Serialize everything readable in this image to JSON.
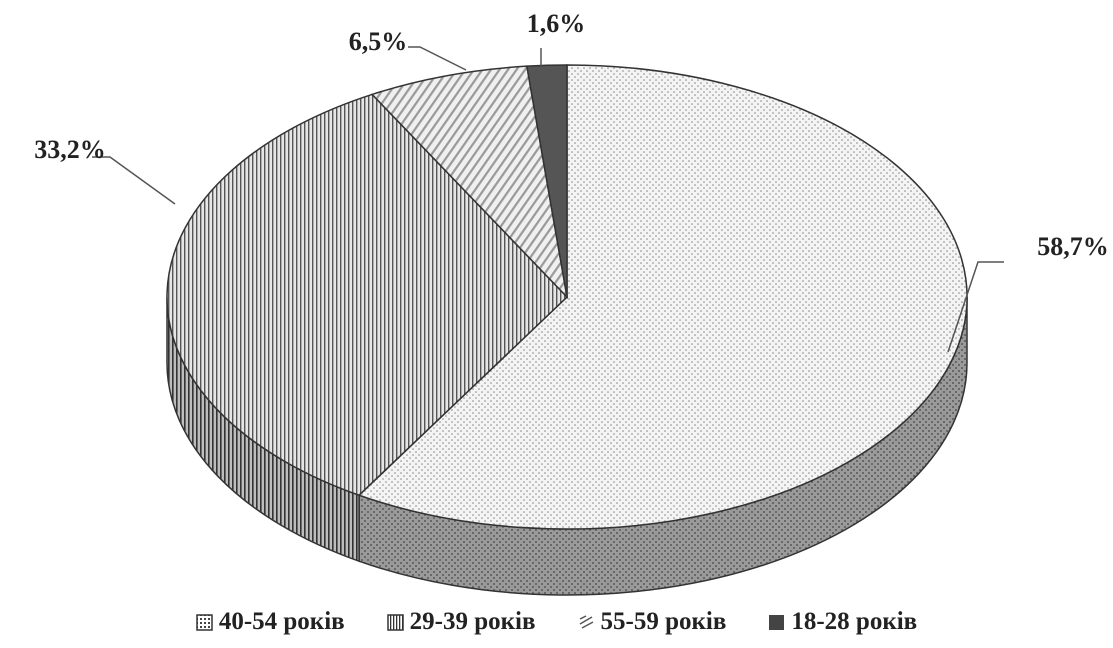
{
  "chart_data": {
    "type": "pie",
    "style": "3d",
    "title": "",
    "slices": [
      {
        "label": "40-54 років",
        "value": 58.7,
        "display": "58,7%",
        "pattern": "dots"
      },
      {
        "label": "29-39 років",
        "value": 33.2,
        "display": "33,2%",
        "pattern": "vertical-lines"
      },
      {
        "label": "55-59 років",
        "value": 6.5,
        "display": "6,5%",
        "pattern": "diagonal-lines"
      },
      {
        "label": "18-28 років",
        "value": 1.6,
        "display": "1,6%",
        "pattern": "solid-dark"
      }
    ],
    "legend": {
      "position": "bottom",
      "items": [
        "40-54 років",
        "29-39 років",
        "55-59 років",
        "18-28 років"
      ]
    }
  }
}
